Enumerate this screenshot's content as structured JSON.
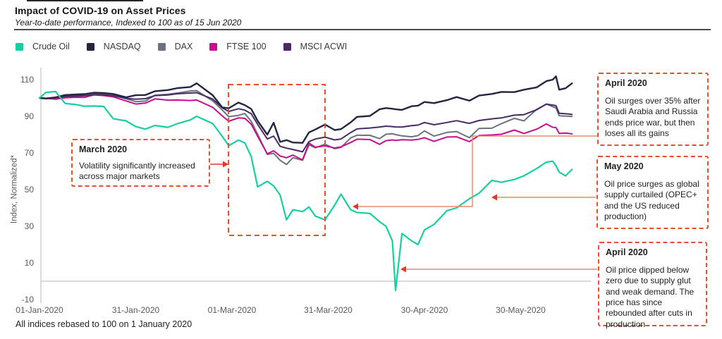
{
  "header": {
    "title": "Impact of COVID-19 on Asset Prices",
    "subtitle": "Year-to-date performance, Indexed to 100 as of 15 Jun 2020"
  },
  "legend": {
    "items": [
      {
        "label": "Crude Oil",
        "color": "#14d0a0"
      },
      {
        "label": "NASDAQ",
        "color": "#23263f"
      },
      {
        "label": "DAX",
        "color": "#6a737d"
      },
      {
        "label": "FTSE 100",
        "color": "#c90d8f"
      },
      {
        "label": "MSCI ACWI",
        "color": "#472a66"
      }
    ]
  },
  "chart_data": {
    "type": "line",
    "title": "Impact of COVID-19 on Asset Prices",
    "subtitle": "Year-to-date performance, Indexed to 100 as of 15 Jun 2020",
    "xlabel": "",
    "ylabel": "Index, Normalized*",
    "x_unit": "days since 01-Jan-2020",
    "ylim": [
      -10,
      115
    ],
    "grid": false,
    "legend_position": "top",
    "yticks": [
      110,
      90,
      70,
      50,
      30,
      10,
      -10
    ],
    "xticks": [
      {
        "label": "01-Jan-2020",
        "day": 0
      },
      {
        "label": "31-Jan-2020",
        "day": 30
      },
      {
        "label": "01-Mar-2020",
        "day": 60
      },
      {
        "label": "31-Mar-2020",
        "day": 90
      },
      {
        "label": "30-Apr-2020",
        "day": 120
      },
      {
        "label": "30-May-2020",
        "day": 150
      }
    ],
    "x": [
      0,
      2,
      5,
      8,
      11,
      14,
      17,
      20,
      23,
      27,
      30,
      33,
      36,
      40,
      43,
      47,
      49,
      54,
      57,
      59,
      62,
      64,
      66,
      68,
      71,
      73,
      75,
      77,
      79,
      82,
      84,
      86,
      89,
      92,
      94,
      97,
      99,
      103,
      106,
      108,
      110,
      111,
      113,
      116,
      118,
      120,
      123,
      127,
      130,
      134,
      137,
      141,
      144,
      148,
      151,
      155,
      158,
      160,
      161,
      162,
      164,
      166
    ],
    "series": [
      {
        "name": "Crude Oil",
        "color": "#14d0a0",
        "values": [
          100,
          103,
          103.5,
          97,
          96.5,
          95.5,
          95.6,
          95.4,
          88.7,
          87.5,
          84.4,
          83,
          85,
          84,
          86,
          88,
          90,
          86,
          79,
          74,
          77,
          75.5,
          68,
          51.5,
          54.5,
          52,
          47,
          33.5,
          39,
          38,
          40.5,
          35.5,
          33.5,
          41.5,
          47.5,
          39,
          37.5,
          37,
          32.5,
          30,
          22,
          -5,
          26,
          22,
          20,
          28,
          31,
          38.5,
          40,
          45,
          48,
          55,
          54,
          55.5,
          57.5,
          61.5,
          65,
          65.5,
          63,
          59.5,
          57.5,
          61
        ]
      },
      {
        "name": "NASDAQ",
        "color": "#23263f",
        "values": [
          100,
          99.7,
          100.3,
          101.6,
          101.9,
          102.1,
          102.9,
          102.7,
          102.2,
          100.4,
          101.5,
          101.6,
          103.7,
          104.3,
          105.4,
          106,
          108,
          101.5,
          94.8,
          94.4,
          97.5,
          96.1,
          94,
          87.5,
          80,
          86.5,
          76,
          77,
          75.7,
          75.5,
          81.2,
          82.8,
          85.5,
          82.5,
          83,
          86.7,
          89.7,
          90.2,
          93.8,
          94.5,
          94.1,
          93.8,
          93.5,
          95.5,
          95.8,
          97.8,
          97.2,
          98.8,
          100.5,
          98.5,
          101.3,
          102.2,
          103.3,
          103.2,
          104.5,
          105.8,
          109.2,
          110,
          111.8,
          104.5,
          105.3,
          108
        ]
      },
      {
        "name": "DAX",
        "color": "#6a737d",
        "values": [
          100,
          99.8,
          100.4,
          101.3,
          101.6,
          101.4,
          102.3,
          102.1,
          101.5,
          99.6,
          98,
          98.3,
          101.5,
          102,
          102.7,
          103.8,
          104,
          98.4,
          93.4,
          89.8,
          90.5,
          91.5,
          87.2,
          80.2,
          69.2,
          69.8,
          66,
          63.7,
          67.4,
          66,
          74.4,
          72.8,
          74.8,
          72.3,
          73,
          78.2,
          79.7,
          79.6,
          77.8,
          80.2,
          80.5,
          80,
          79.3,
          78.8,
          79.5,
          82,
          79.2,
          81.2,
          81.7,
          78.3,
          83.4,
          83.5,
          86,
          88.9,
          87.5,
          93.8,
          96.7,
          95.2,
          94.6,
          90.3,
          90.1,
          89.9
        ]
      },
      {
        "name": "FTSE 100",
        "color": "#c90d8f",
        "values": [
          100,
          99.8,
          99.3,
          100.1,
          100.4,
          100.3,
          101.7,
          101.3,
          100.6,
          98.4,
          96.7,
          97.2,
          99.5,
          98.8,
          98.9,
          98.6,
          98.9,
          94.9,
          90.2,
          87.3,
          89.1,
          88.9,
          85.7,
          79.1,
          69.5,
          71.2,
          68.3,
          67.4,
          68.8,
          66.2,
          75.4,
          73.1,
          73.9,
          72.7,
          73.3,
          75.7,
          77.5,
          77.3,
          74.7,
          76.7,
          77.1,
          76.8,
          77.2,
          77,
          77.4,
          78.3,
          76.3,
          78.7,
          78.8,
          76.2,
          79.5,
          79.8,
          80.2,
          82.5,
          80.6,
          83,
          85.8,
          84,
          83.9,
          80.6,
          80.9,
          80.4
        ]
      },
      {
        "name": "MSCI ACWI",
        "color": "#472a66",
        "values": [
          100,
          99.8,
          100.1,
          100.8,
          101,
          101.2,
          101.8,
          101.7,
          101.2,
          99.8,
          99.3,
          99.6,
          101.3,
          101.6,
          102.3,
          102.7,
          102.9,
          99.4,
          94.6,
          92.6,
          94.1,
          93.4,
          91.4,
          85.6,
          77.6,
          79.2,
          73.6,
          72.6,
          71.9,
          70.6,
          76.2,
          77.6,
          78.6,
          77.1,
          77.6,
          81.1,
          83.1,
          83.6,
          84.1,
          84.6,
          84.4,
          84.2,
          84.1,
          84.9,
          85.2,
          86.6,
          85.4,
          86.6,
          87.6,
          86.1,
          87.7,
          88.6,
          89.1,
          90.6,
          90.9,
          93.6,
          96.6,
          96.1,
          95.8,
          91.6,
          91.4,
          91
        ]
      }
    ]
  },
  "annotations": {
    "march": {
      "title": "March 2020",
      "body": "Volatility significantly increased across major markets"
    },
    "april_top": {
      "title": "April 2020",
      "body": "Oil surges over 35%  after Saudi Arabia and Russia ends price war, but then loses all its gains"
    },
    "may": {
      "title": "May 2020",
      "body": "Oil price surges as global supply curtailed (OPEC+ and the US reduced production)"
    },
    "april_bottom": {
      "title": "April 2020",
      "body": "Oil price dipped below zero due to supply glut and weak demand. The price has since rebounded after cuts in production"
    }
  },
  "footer": {
    "note": "All indices rebased to 100 on 1 January 2020"
  },
  "colors": {
    "annotation_border": "#e8502d",
    "connector": "#ea8a66",
    "arrow": "#e0382a",
    "axis": "#c9ced1",
    "tick_text": "#595959"
  }
}
